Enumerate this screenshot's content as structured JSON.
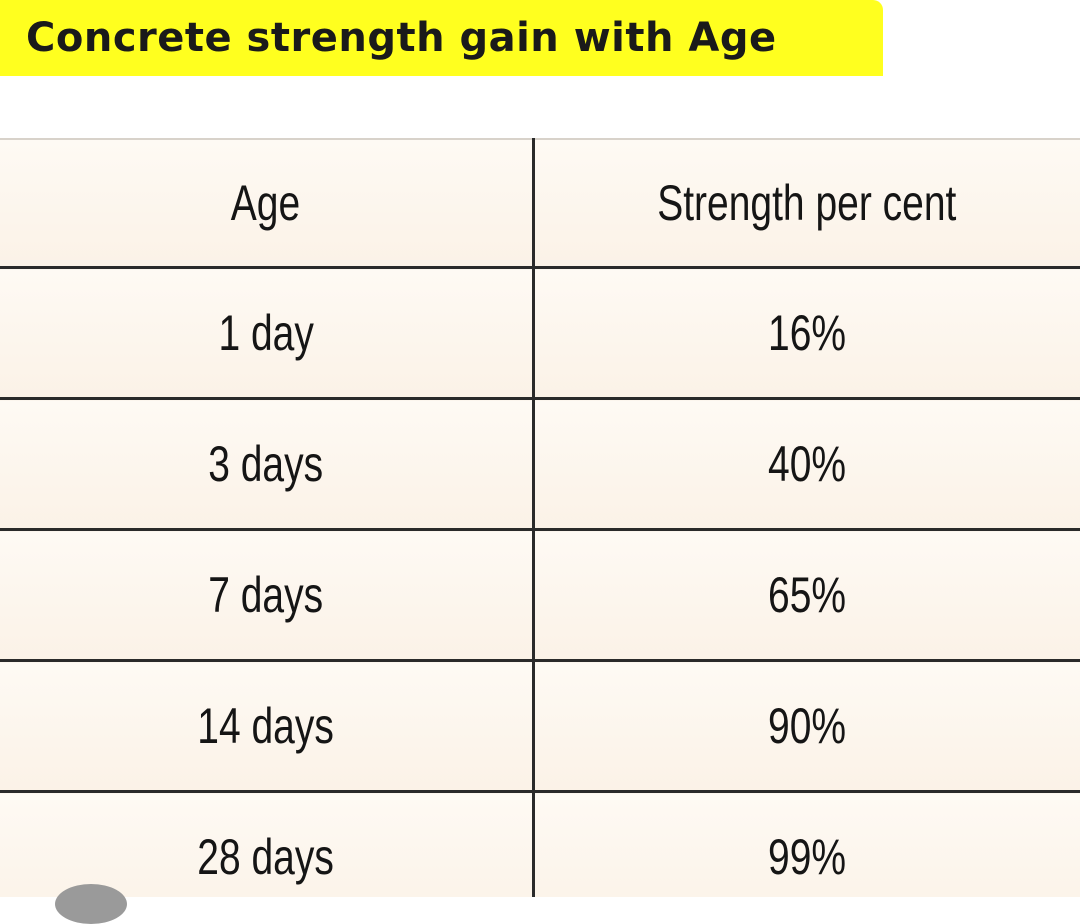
{
  "title": "Concrete strength gain with Age",
  "table": {
    "headers": [
      "Age",
      "Strength per cent"
    ],
    "rows": [
      [
        "1 day",
        "16%"
      ],
      [
        "3 days",
        "40%"
      ],
      [
        "7 days",
        "65%"
      ],
      [
        "14 days",
        "90%"
      ],
      [
        "28 days",
        "99%"
      ]
    ]
  },
  "colors": {
    "banner": "#ffff1f",
    "table_bg": "#fdf6ee",
    "rule": "#2a2a2a"
  }
}
